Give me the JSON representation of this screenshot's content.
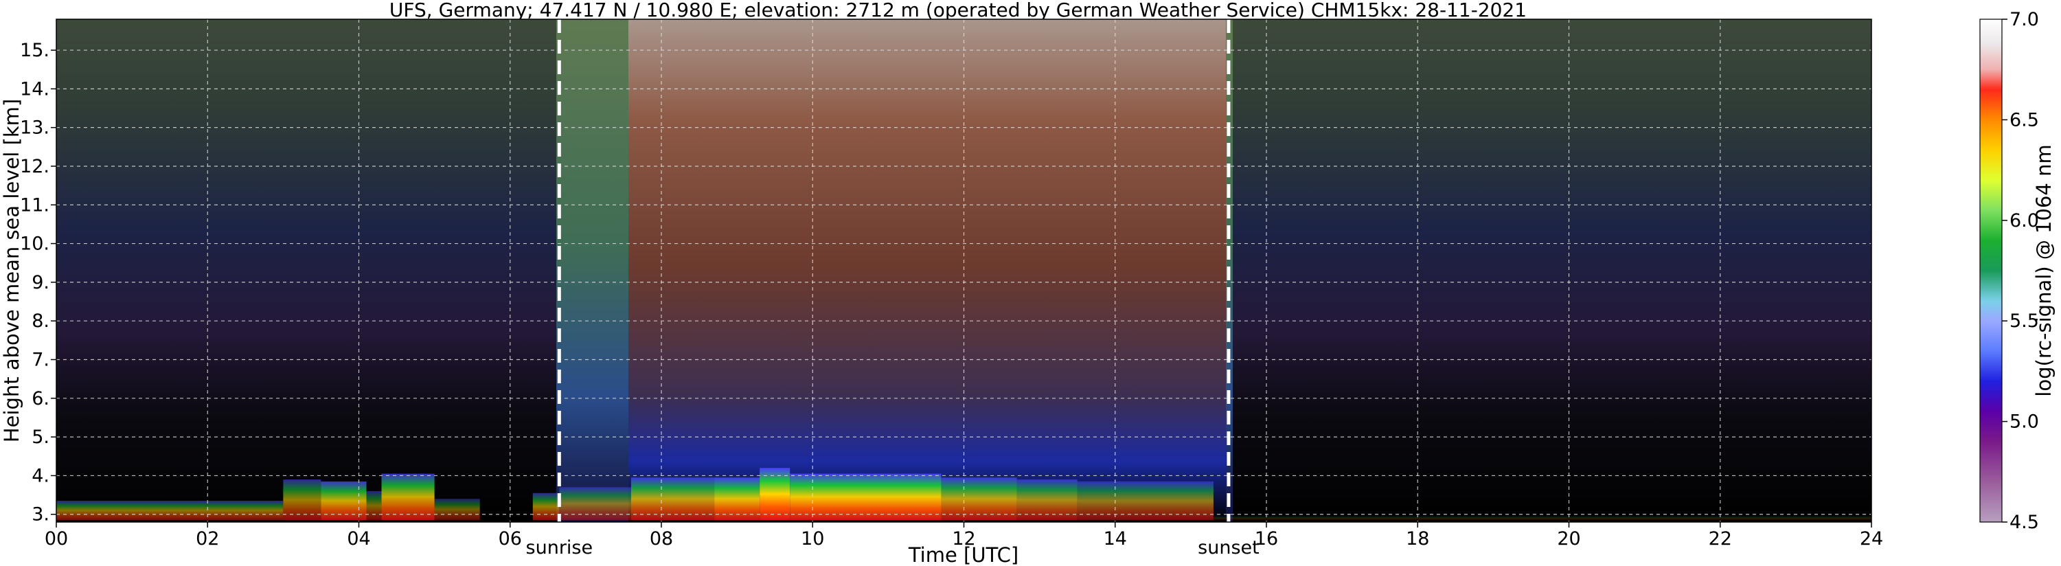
{
  "chart_data": {
    "type": "heatmap",
    "title": "UFS, Germany; 47.417 N / 10.980 E; elevation: 2712 m  (operated by German Weather Service)    CHM15kx: 28-11-2021",
    "xlabel": "Time [UTC]",
    "ylabel": "Height above mean sea level [km]",
    "xlim": [
      0,
      24
    ],
    "ylim": [
      2.8,
      15.8
    ],
    "x_ticks": [
      "00",
      "02",
      "04",
      "06",
      "08",
      "10",
      "12",
      "14",
      "16",
      "18",
      "20",
      "22",
      "24"
    ],
    "y_ticks": [
      "3.",
      "4.",
      "5.",
      "6.",
      "7.",
      "8.",
      "9.",
      "10.",
      "11.",
      "12.",
      "13.",
      "14.",
      "15."
    ],
    "grid": true,
    "annotations": [
      {
        "label": "sunrise",
        "x": 6.65
      },
      {
        "label": "sunset",
        "x": 15.5
      }
    ],
    "colorbar": {
      "label": "log(rc-signal) @ 1064 nm",
      "range": [
        4.5,
        7.0
      ],
      "ticks": [
        "4.5",
        "5.0",
        "5.5",
        "6.0",
        "6.5",
        "7.0"
      ]
    },
    "cloud_layer": [
      {
        "start": 0.0,
        "end": 3.0,
        "top": 3.35,
        "intensity": 0.55
      },
      {
        "start": 3.0,
        "end": 3.5,
        "top": 3.9,
        "intensity": 0.6
      },
      {
        "start": 3.5,
        "end": 4.1,
        "top": 3.85,
        "intensity": 0.8
      },
      {
        "start": 4.1,
        "end": 4.3,
        "top": 3.6,
        "intensity": 0.5
      },
      {
        "start": 4.3,
        "end": 5.0,
        "top": 4.05,
        "intensity": 0.8
      },
      {
        "start": 5.0,
        "end": 5.6,
        "top": 3.4,
        "intensity": 0.45
      },
      {
        "start": 6.3,
        "end": 6.65,
        "top": 3.55,
        "intensity": 0.6
      },
      {
        "start": 6.65,
        "end": 7.6,
        "top": 3.7,
        "intensity": 0.5
      },
      {
        "start": 7.6,
        "end": 8.7,
        "top": 3.95,
        "intensity": 0.75
      },
      {
        "start": 8.7,
        "end": 9.3,
        "top": 3.95,
        "intensity": 0.9
      },
      {
        "start": 9.3,
        "end": 9.7,
        "top": 4.2,
        "intensity": 1.0
      },
      {
        "start": 9.7,
        "end": 11.7,
        "top": 4.05,
        "intensity": 0.95
      },
      {
        "start": 11.7,
        "end": 12.7,
        "top": 3.95,
        "intensity": 0.75
      },
      {
        "start": 12.7,
        "end": 13.5,
        "top": 3.9,
        "intensity": 0.65
      },
      {
        "start": 13.5,
        "end": 15.3,
        "top": 3.85,
        "intensity": 0.55
      },
      {
        "start": 15.3,
        "end": 24.0,
        "top": 2.95,
        "intensity": 0.15
      }
    ],
    "colors": {
      "sunline": "#ffffff",
      "grid": "#dddddd",
      "night_upper": "#0b0b16",
      "day_upper": "#7a4a3c"
    }
  }
}
